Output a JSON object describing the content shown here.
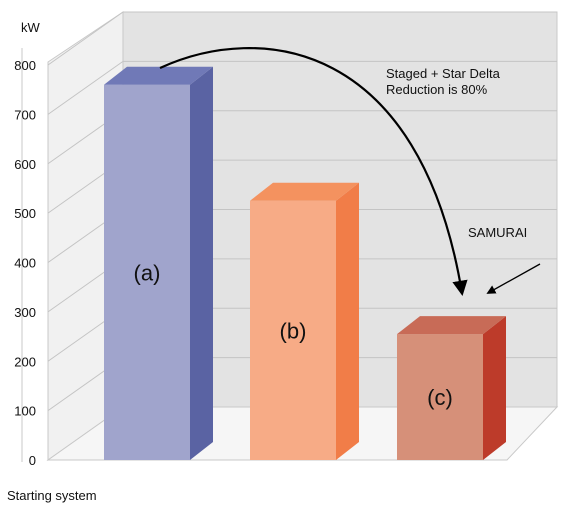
{
  "chart_data": {
    "type": "bar",
    "unit_label": "kW",
    "categories": [
      "(a)",
      "(b)",
      "(c)"
    ],
    "values": [
      760,
      525,
      255
    ],
    "ylim": [
      0,
      800
    ],
    "yticks": [
      "0",
      "100",
      "200",
      "300",
      "400",
      "500",
      "600",
      "700",
      "800"
    ],
    "grid": true,
    "colors": {
      "a": {
        "front": "#a0a4cc",
        "side": "#5a63a3",
        "top": "#7079b7"
      },
      "b": {
        "front": "#f7ab86",
        "side": "#f17d48",
        "top": "#f4925f"
      },
      "c": {
        "front": "#d69079",
        "side": "#bd3b2a",
        "top": "#c86b57"
      }
    },
    "annotations": {
      "reduction_line1": "Staged + Star Delta",
      "reduction_line2": "Reduction is 80%",
      "samurai": "SAMURAI"
    },
    "footer": "Starting system"
  }
}
